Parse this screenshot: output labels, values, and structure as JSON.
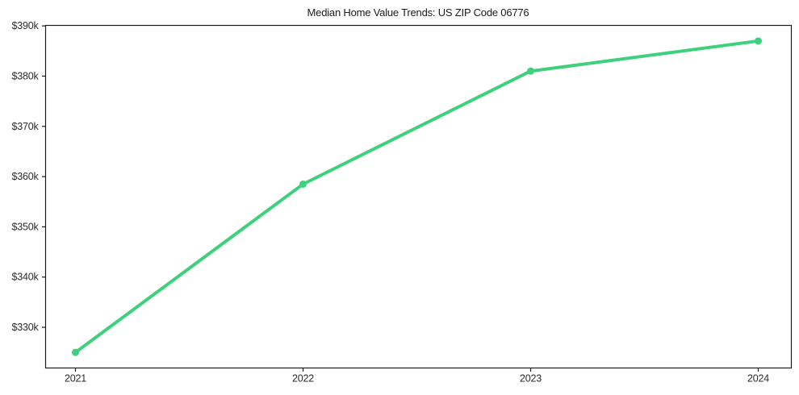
{
  "chart_data": {
    "type": "line",
    "title": "Median Home Value Trends: US ZIP Code 06776",
    "categories": [
      "2021",
      "2022",
      "2023",
      "2024"
    ],
    "values": [
      325000,
      358500,
      381000,
      387000
    ],
    "xlabel": "",
    "ylabel": "",
    "ylim": [
      321900,
      390100
    ],
    "y_ticks": [
      330000,
      340000,
      350000,
      360000,
      370000,
      380000,
      390000
    ],
    "y_tick_labels": [
      "$330k",
      "$340k",
      "$350k",
      "$360k",
      "$370k",
      "$380k",
      "$390k"
    ],
    "grid": false,
    "legend": false,
    "marker": "circle",
    "line_color": "#3ed17c",
    "axis_color": "#1a1a1a",
    "tick_label_color": "#2b2b2b",
    "background_color": "#ffffff"
  }
}
